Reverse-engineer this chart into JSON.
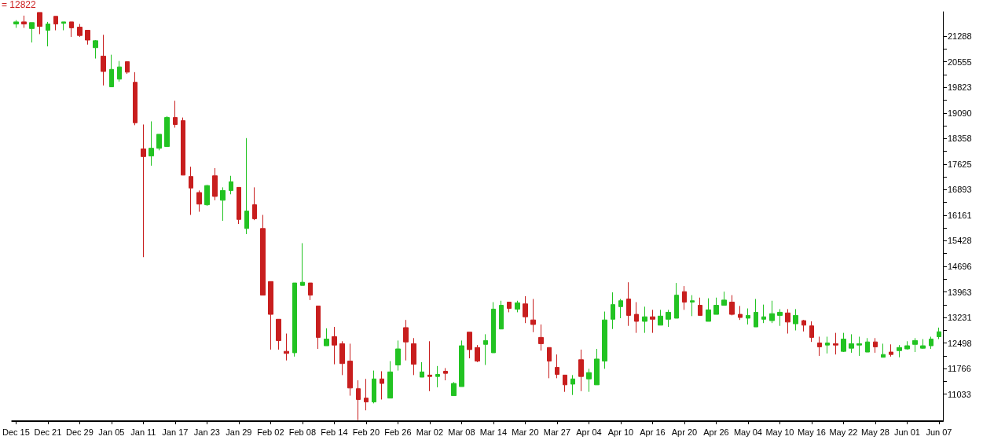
{
  "chart_data": {
    "type": "candlestick",
    "annotations": [
      "= 12822"
    ],
    "categories": [
      "Dec 15",
      null,
      null,
      null,
      "Dec 21",
      null,
      null,
      null,
      "Dec 29",
      null,
      null,
      null,
      "Jan 05",
      null,
      null,
      null,
      "Jan 11",
      null,
      null,
      null,
      "Jan 17",
      null,
      null,
      null,
      "Jan 23",
      null,
      null,
      null,
      "Jan 29",
      null,
      null,
      null,
      "Feb 02",
      null,
      null,
      null,
      "Feb 08",
      null,
      null,
      null,
      "Feb 14",
      null,
      null,
      null,
      "Feb 20",
      null,
      null,
      null,
      "Feb 26",
      null,
      null,
      null,
      "Mar 02",
      null,
      null,
      null,
      "Mar 08",
      null,
      null,
      null,
      "Mar 14",
      null,
      null,
      null,
      "Mar 20",
      null,
      null,
      null,
      "Mar 27",
      null,
      null,
      null,
      "Apr 04",
      null,
      null,
      null,
      "Apr 10",
      null,
      null,
      null,
      "Apr 16",
      null,
      null,
      null,
      "Apr 20",
      null,
      null,
      null,
      "Apr 26",
      null,
      null,
      null,
      "May 04",
      null,
      null,
      null,
      "May 10",
      null,
      null,
      null,
      "May 16",
      null,
      null,
      null,
      "May 22",
      null,
      null,
      null,
      "May 28",
      null,
      null,
      null,
      "Jun 01",
      null,
      null,
      null,
      "Jun 07"
    ],
    "ohlc": [
      [
        21640,
        21750,
        21530,
        21700
      ],
      [
        21700,
        21880,
        21530,
        21640
      ],
      [
        21510,
        21680,
        21110,
        21680
      ],
      [
        21970,
        21970,
        21350,
        21570
      ],
      [
        21460,
        21700,
        21000,
        21640
      ],
      [
        21860,
        21860,
        21460,
        21640
      ],
      [
        21660,
        21700,
        21460,
        21700
      ],
      [
        21700,
        21700,
        21270,
        21530
      ],
      [
        21550,
        21640,
        21270,
        21310
      ],
      [
        21460,
        21460,
        21050,
        21180
      ],
      [
        20960,
        21180,
        20650,
        21160
      ],
      [
        20720,
        21330,
        19880,
        20280
      ],
      [
        19840,
        20760,
        19840,
        20340
      ],
      [
        20060,
        20580,
        19990,
        20410
      ],
      [
        20560,
        20560,
        20210,
        20260
      ],
      [
        19970,
        20260,
        18740,
        18810
      ],
      [
        18060,
        18760,
        14960,
        17840
      ],
      [
        17860,
        18850,
        17580,
        18080
      ],
      [
        18080,
        18480,
        18020,
        18480
      ],
      [
        18130,
        19000,
        18130,
        18960
      ],
      [
        18960,
        19440,
        18670,
        18760
      ],
      [
        18870,
        18960,
        17310,
        17310
      ],
      [
        17270,
        17550,
        16170,
        16940
      ],
      [
        16810,
        16870,
        16260,
        16480
      ],
      [
        16460,
        17030,
        16430,
        17010
      ],
      [
        17290,
        17510,
        16590,
        16700
      ],
      [
        16590,
        16960,
        16000,
        16870
      ],
      [
        16870,
        17290,
        16760,
        17120
      ],
      [
        16960,
        16960,
        15910,
        16040
      ],
      [
        15780,
        18370,
        15620,
        16280
      ],
      [
        16460,
        16960,
        16020,
        16060
      ],
      [
        15780,
        16170,
        13870,
        13870
      ],
      [
        14260,
        14260,
        12310,
        13320
      ],
      [
        13180,
        13180,
        12310,
        12570
      ],
      [
        12260,
        12770,
        12000,
        12200
      ],
      [
        12220,
        14220,
        12110,
        14220
      ],
      [
        14150,
        15360,
        14150,
        14240
      ],
      [
        14220,
        14220,
        13730,
        13870
      ],
      [
        13560,
        13560,
        12330,
        12660
      ],
      [
        12420,
        12920,
        12420,
        12610
      ],
      [
        12680,
        12960,
        11890,
        12440
      ],
      [
        12480,
        12550,
        11580,
        11910
      ],
      [
        11980,
        12480,
        10990,
        11210
      ],
      [
        11190,
        11430,
        10290,
        10880
      ],
      [
        10920,
        11470,
        10570,
        10810
      ],
      [
        10810,
        11710,
        10770,
        11470
      ],
      [
        11470,
        11690,
        10880,
        11340
      ],
      [
        10920,
        11980,
        10920,
        11670
      ],
      [
        11870,
        12570,
        11710,
        12330
      ],
      [
        12940,
        13160,
        12000,
        12530
      ],
      [
        12480,
        12640,
        11580,
        11890
      ],
      [
        11520,
        11950,
        11520,
        11670
      ],
      [
        11580,
        12550,
        11120,
        11540
      ],
      [
        11540,
        11840,
        11230,
        11600
      ],
      [
        11690,
        11780,
        11430,
        11630
      ],
      [
        10990,
        11380,
        10990,
        11340
      ],
      [
        11250,
        12570,
        11250,
        12420
      ],
      [
        12810,
        12810,
        12060,
        12310
      ],
      [
        12370,
        12440,
        11950,
        11980
      ],
      [
        12460,
        12750,
        11870,
        12570
      ],
      [
        12220,
        13670,
        12220,
        13470
      ],
      [
        12900,
        13710,
        12900,
        13580
      ],
      [
        13670,
        13670,
        13380,
        13490
      ],
      [
        13470,
        13710,
        13380,
        13650
      ],
      [
        13620,
        13840,
        13070,
        13250
      ],
      [
        13160,
        13760,
        12810,
        13030
      ],
      [
        12660,
        13030,
        12280,
        12480
      ],
      [
        12370,
        12370,
        11490,
        11980
      ],
      [
        11800,
        12170,
        11490,
        11600
      ],
      [
        11580,
        11580,
        11100,
        11300
      ],
      [
        11320,
        11580,
        11010,
        11470
      ],
      [
        12020,
        12310,
        11120,
        11540
      ],
      [
        11470,
        11760,
        11100,
        11650
      ],
      [
        11300,
        12330,
        11300,
        12040
      ],
      [
        11980,
        13400,
        11760,
        13160
      ],
      [
        13180,
        13950,
        12900,
        13600
      ],
      [
        13540,
        13760,
        13210,
        13710
      ],
      [
        13760,
        14240,
        12990,
        13290
      ],
      [
        13320,
        13670,
        12790,
        13120
      ],
      [
        13120,
        13540,
        12790,
        13250
      ],
      [
        13250,
        13450,
        12790,
        13180
      ],
      [
        13010,
        13450,
        13010,
        13270
      ],
      [
        13180,
        13450,
        12960,
        13380
      ],
      [
        13210,
        14220,
        13210,
        13870
      ],
      [
        13970,
        14130,
        13450,
        13670
      ],
      [
        13670,
        13870,
        13270,
        13710
      ],
      [
        13580,
        13800,
        13290,
        13290
      ],
      [
        13120,
        13780,
        13120,
        13450
      ],
      [
        13320,
        13800,
        13320,
        13580
      ],
      [
        13580,
        13970,
        13580,
        13730
      ],
      [
        13670,
        13870,
        13290,
        13320
      ],
      [
        13320,
        13560,
        13160,
        13230
      ],
      [
        13210,
        13490,
        13030,
        13290
      ],
      [
        12960,
        13760,
        12960,
        13380
      ],
      [
        13180,
        13600,
        13070,
        13250
      ],
      [
        13140,
        13710,
        13070,
        13340
      ],
      [
        13290,
        13470,
        12990,
        13380
      ],
      [
        13360,
        13470,
        12770,
        13100
      ],
      [
        13050,
        13470,
        12860,
        13290
      ],
      [
        13140,
        13160,
        12830,
        13010
      ],
      [
        12990,
        13120,
        12530,
        12660
      ],
      [
        12500,
        12680,
        12130,
        12390
      ],
      [
        12440,
        12680,
        12200,
        12500
      ],
      [
        12480,
        12790,
        12170,
        12440
      ],
      [
        12260,
        12790,
        12240,
        12610
      ],
      [
        12350,
        12750,
        12220,
        12480
      ],
      [
        12440,
        12680,
        12130,
        12480
      ],
      [
        12240,
        12640,
        12240,
        12530
      ],
      [
        12530,
        12640,
        12220,
        12390
      ],
      [
        12090,
        12480,
        12090,
        12170
      ],
      [
        12240,
        12460,
        12110,
        12170
      ],
      [
        12280,
        12440,
        12090,
        12370
      ],
      [
        12330,
        12550,
        12310,
        12420
      ],
      [
        12460,
        12640,
        12240,
        12570
      ],
      [
        12350,
        12610,
        12330,
        12420
      ],
      [
        12420,
        12680,
        12330,
        12610
      ],
      [
        12680,
        12940,
        12610,
        12822
      ]
    ],
    "colors": [
      "#22c322",
      "#c81e1e",
      "#22c322",
      "#c81e1e",
      "#22c322",
      "#c81e1e",
      "#22c322",
      "#c81e1e",
      "#c81e1e",
      "#c81e1e",
      "#22c322",
      "#c81e1e",
      "#22c322",
      "#22c322",
      "#c81e1e",
      "#c81e1e",
      "#c81e1e",
      "#22c322",
      "#22c322",
      "#22c322",
      "#c81e1e",
      "#c81e1e",
      "#c81e1e",
      "#c81e1e",
      "#22c322",
      "#c81e1e",
      "#22c322",
      "#22c322",
      "#c81e1e",
      "#22c322",
      "#c81e1e",
      "#c81e1e",
      "#c81e1e",
      "#c81e1e",
      "#c81e1e",
      "#22c322",
      "#22c322",
      "#c81e1e",
      "#c81e1e",
      "#22c322",
      "#c81e1e",
      "#c81e1e",
      "#c81e1e",
      "#c81e1e",
      "#c81e1e",
      "#22c322",
      "#c81e1e",
      "#22c322",
      "#22c322",
      "#c81e1e",
      "#c81e1e",
      "#22c322",
      "#c81e1e",
      "#22c322",
      "#c81e1e",
      "#22c322",
      "#22c322",
      "#c81e1e",
      "#c81e1e",
      "#22c322",
      "#22c322",
      "#22c322",
      "#c81e1e",
      "#22c322",
      "#c81e1e",
      "#c81e1e",
      "#c81e1e",
      "#c81e1e",
      "#c81e1e",
      "#c81e1e",
      "#22c322",
      "#c81e1e",
      "#22c322",
      "#22c322",
      "#22c322",
      "#22c322",
      "#22c322",
      "#c81e1e",
      "#c81e1e",
      "#22c322",
      "#c81e1e",
      "#22c322",
      "#22c322",
      "#22c322",
      "#c81e1e",
      "#22c322",
      "#c81e1e",
      "#22c322",
      "#22c322",
      "#22c322",
      "#c81e1e",
      "#c81e1e",
      "#22c322",
      "#22c322",
      "#22c322",
      "#22c322",
      "#22c322",
      "#c81e1e",
      "#22c322",
      "#c81e1e",
      "#c81e1e",
      "#c81e1e",
      "#22c322",
      "#c81e1e",
      "#22c322",
      "#22c322",
      "#22c322",
      "#22c322",
      "#c81e1e",
      "#22c322",
      "#c81e1e",
      "#22c322",
      "#22c322",
      "#22c322",
      "#22c322",
      "#22c322",
      "#22c322"
    ],
    "ylim": [
      10260,
      21990
    ],
    "yticks": [
      11033,
      {
        "value": 11400,
        "label": null
      },
      11766,
      {
        "value": 12132,
        "label": null
      },
      12498,
      {
        "value": 12865,
        "label": null
      },
      13231,
      {
        "value": 13597,
        "label": null
      },
      13963,
      {
        "value": 14330,
        "label": null
      },
      14696,
      {
        "value": 15062,
        "label": null
      },
      15428,
      {
        "value": 15795,
        "label": null
      },
      16161,
      {
        "value": 16527,
        "label": null
      },
      16893,
      {
        "value": 17259,
        "label": null
      },
      17625,
      {
        "value": 17992,
        "label": null
      },
      18358,
      {
        "value": 18724,
        "label": null
      },
      19090,
      {
        "value": 19457,
        "label": null
      },
      19823,
      {
        "value": 20189,
        "label": null
      },
      20555,
      {
        "value": 20922,
        "label": null
      },
      21288
    ]
  }
}
